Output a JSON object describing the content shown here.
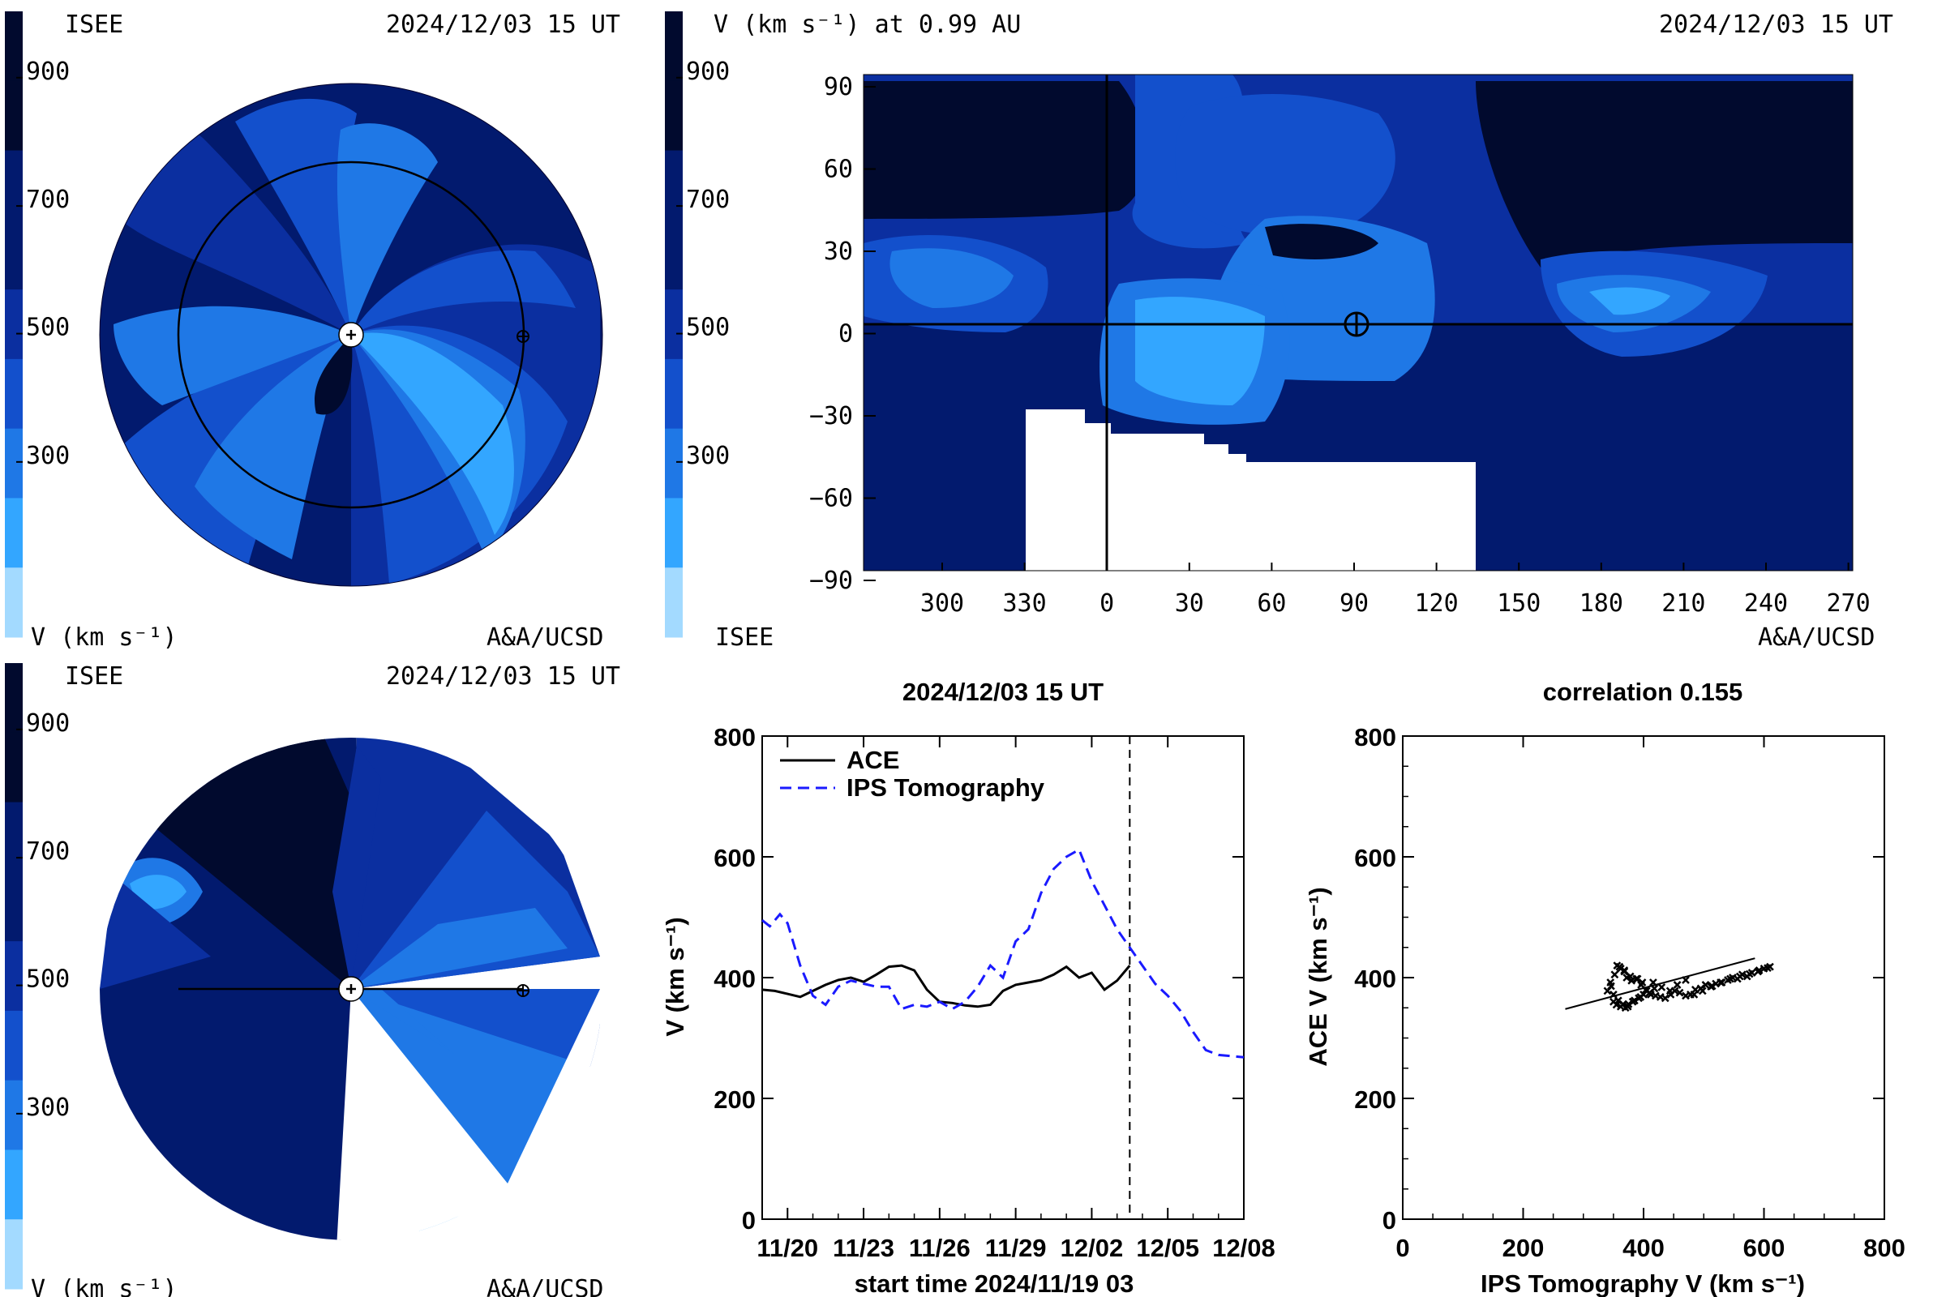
{
  "palette": {
    "c900": "#010a2e",
    "c700": "#021a6e",
    "c600": "#0b2fa0",
    "c500": "#1350cc",
    "c400": "#1f78e6",
    "c300": "#33a6ff",
    "c200": "#a3daff",
    "ace_line": "#000000",
    "ips_line": "#1a1aff"
  },
  "colorbar": {
    "ticks": [
      "900",
      "700",
      "500",
      "300"
    ],
    "unit_label": "V (km s⁻¹)"
  },
  "panel_top_left": {
    "org_left": "ISEE",
    "timestamp": "2024/12/03 15 UT",
    "unit_label": "V (km s⁻¹)",
    "credit": "A&A/UCSD"
  },
  "panel_top_right": {
    "title_left": "V (km s⁻¹) at 0.99 AU",
    "timestamp": "2024/12/03 15 UT",
    "org_left": "ISEE",
    "credit": "A&A/UCSD",
    "y_ticks": [
      "90",
      "60",
      "30",
      "0",
      "−30",
      "−60",
      "−90"
    ],
    "x_ticks": [
      "300",
      "330",
      "0",
      "30",
      "60",
      "90",
      "120",
      "150",
      "180",
      "210",
      "240",
      "270"
    ]
  },
  "panel_bottom_left": {
    "org_left": "ISEE",
    "timestamp": "2024/12/03 15 UT",
    "unit_label": "V (km s⁻¹)",
    "credit": "A&A/UCSD"
  },
  "chart_data": [
    {
      "type": "line",
      "title": "2024/12/03 15 UT",
      "xlabel": "start time 2024/11/19 03",
      "ylabel": "V (km s⁻¹)",
      "x_tick_labels": [
        "11/20",
        "11/23",
        "11/26",
        "11/29",
        "12/02",
        "12/05",
        "12/08"
      ],
      "y_ticks": [
        0,
        200,
        400,
        600,
        800
      ],
      "xlim_days": [
        0,
        19
      ],
      "ylim": [
        0,
        800
      ],
      "marker_day": 14.5,
      "series": [
        {
          "name": "ACE",
          "style": "solid",
          "x": [
            0,
            0.5,
            1,
            1.5,
            2,
            2.5,
            3,
            3.5,
            4,
            4.5,
            5,
            5.5,
            6,
            6.5,
            7,
            7.5,
            8,
            8.5,
            9,
            9.5,
            10,
            10.5,
            11,
            11.5,
            12,
            12.5,
            13,
            13.5,
            14,
            14.5
          ],
          "y": [
            380,
            378,
            373,
            368,
            378,
            388,
            396,
            400,
            393,
            405,
            418,
            420,
            412,
            380,
            360,
            358,
            354,
            352,
            355,
            378,
            388,
            392,
            396,
            405,
            418,
            400,
            408,
            380,
            395,
            420
          ]
        },
        {
          "name": "IPS Tomography",
          "style": "dashed",
          "x": [
            0,
            0.3,
            0.7,
            1,
            1.5,
            2,
            2.5,
            3,
            3.5,
            4,
            4.5,
            5,
            5.5,
            6,
            6.5,
            7,
            7.5,
            8,
            8.5,
            9,
            9.5,
            10,
            10.5,
            11,
            11.5,
            12,
            12.5,
            13,
            13.5,
            14,
            14.5,
            15,
            15.5,
            16,
            16.5,
            17,
            17.5,
            18,
            18.5,
            19
          ],
          "y": [
            495,
            485,
            505,
            490,
            420,
            370,
            355,
            385,
            395,
            390,
            385,
            385,
            348,
            355,
            352,
            360,
            348,
            360,
            385,
            420,
            400,
            460,
            480,
            540,
            580,
            600,
            612,
            560,
            520,
            480,
            450,
            420,
            390,
            370,
            345,
            310,
            280,
            272,
            270,
            268
          ]
        }
      ]
    },
    {
      "type": "scatter",
      "title": "correlation 0.155",
      "xlabel": "IPS Tomography V (km s⁻¹)",
      "ylabel": "ACE V (km s⁻¹)",
      "x_ticks": [
        0,
        200,
        400,
        600,
        800
      ],
      "y_ticks": [
        0,
        200,
        400,
        600,
        800
      ],
      "xlim": [
        0,
        800
      ],
      "ylim": [
        0,
        800
      ],
      "fit_line": {
        "x": [
          270,
          585
        ],
        "y": [
          348,
          432
        ]
      },
      "points": {
        "x": [
          340,
          345,
          352,
          360,
          368,
          372,
          380,
          390,
          396,
          405,
          412,
          420,
          428,
          436,
          445,
          452,
          460,
          470,
          478,
          486,
          495,
          503,
          512,
          520,
          530,
          540,
          548,
          556,
          564,
          572,
          580,
          590,
          600,
          610,
          350,
          355,
          362,
          370,
          375,
          385,
          395,
          400,
          410,
          418,
          356,
          362,
          368,
          378,
          388,
          398,
          346,
          350,
          358,
          366,
          374,
          382,
          392,
          404,
          416,
          430,
          444,
          456,
          470,
          484,
          498,
          514,
          528,
          544,
          560,
          576,
          592,
          606
        ],
        "y": [
          378,
          392,
          405,
          418,
          412,
          400,
          395,
          398,
          388,
          378,
          372,
          370,
          368,
          366,
          372,
          378,
          375,
          370,
          372,
          380,
          382,
          388,
          385,
          390,
          392,
          396,
          400,
          398,
          405,
          402,
          408,
          410,
          415,
          418,
          360,
          355,
          352,
          350,
          356,
          362,
          368,
          372,
          375,
          382,
          420,
          415,
          410,
          402,
          398,
          392,
          386,
          372,
          362,
          356,
          352,
          360,
          366,
          380,
          392,
          384,
          378,
          388,
          396,
          372,
          378,
          386,
          392,
          398,
          402,
          406,
          412,
          416
        ]
      }
    }
  ]
}
